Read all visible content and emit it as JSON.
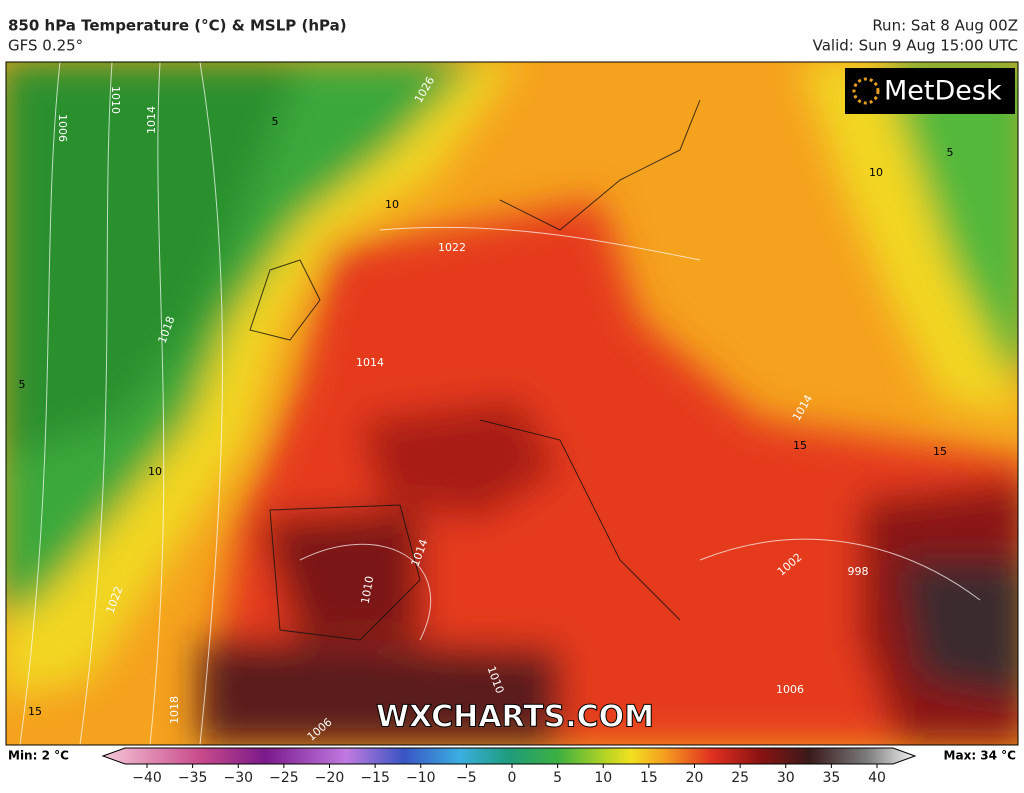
{
  "header": {
    "title": "850 hPa Temperature (°C) & MSLP (hPa)",
    "subtitle": "GFS 0.25°",
    "run": "Run: Sat 8 Aug 00Z",
    "valid": "Valid: Sun 9 Aug 15:00 UTC"
  },
  "logo": "MetDesk",
  "watermark": "WXCHARTS.COM",
  "map": {
    "isobar_labels": [
      1006,
      1010,
      1014,
      1026,
      1022,
      1018,
      1014,
      1014,
      1014,
      1010,
      1010,
      1006,
      1006,
      1002,
      998,
      1018,
      1022
    ],
    "isotherm_labels": [
      5,
      10,
      5,
      10,
      5,
      10,
      15,
      15,
      15
    ]
  },
  "legend": {
    "min": "Min: 2 °C",
    "max": "Max: 34 °C",
    "ticks": [
      {
        "value": -40,
        "label": "−40"
      },
      {
        "value": -35,
        "label": "−35"
      },
      {
        "value": -30,
        "label": "−30"
      },
      {
        "value": -25,
        "label": "−25"
      },
      {
        "value": -20,
        "label": "−20"
      },
      {
        "value": -15,
        "label": "−15"
      },
      {
        "value": -10,
        "label": "−10"
      },
      {
        "value": -5,
        "label": "−5"
      },
      0,
      5,
      10,
      15,
      20,
      25,
      30,
      35,
      40
    ]
  }
}
